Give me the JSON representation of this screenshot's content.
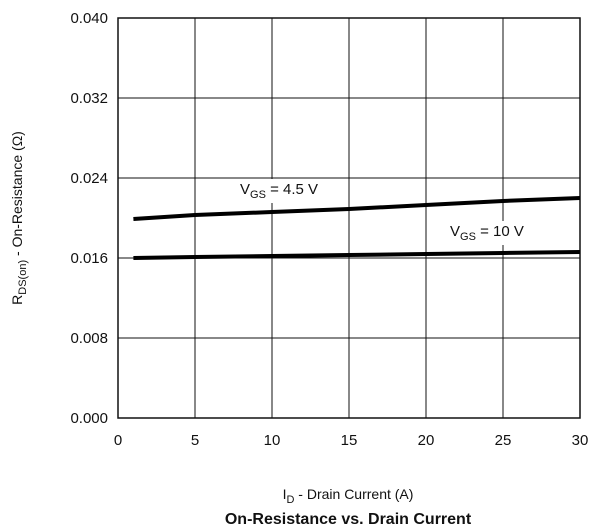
{
  "chart_data": {
    "type": "line",
    "title": "On-Resistance vs. Drain Current",
    "xlabel": {
      "main": "I",
      "sub": "D",
      "rest": " - Drain Current (A)"
    },
    "ylabel": {
      "main": "R",
      "sub": "DS(on)",
      "rest": " - On-Resistance (Ω)"
    },
    "xlim": [
      0,
      30
    ],
    "ylim": [
      0,
      0.04
    ],
    "xticks": [
      "0",
      "5",
      "10",
      "15",
      "20",
      "25",
      "30"
    ],
    "yticks": [
      "0.000",
      "0.008",
      "0.016",
      "0.024",
      "0.032",
      "0.040"
    ],
    "grid": true,
    "series": [
      {
        "name": {
          "main": "V",
          "sub": "GS",
          "rest": " = 4.5 V"
        },
        "x": [
          1,
          5,
          10,
          15,
          20,
          25,
          30
        ],
        "y": [
          0.0199,
          0.0203,
          0.0206,
          0.0209,
          0.0213,
          0.0217,
          0.022
        ]
      },
      {
        "name": {
          "main": "V",
          "sub": "GS",
          "rest": " = 10 V"
        },
        "x": [
          1,
          5,
          10,
          15,
          20,
          25,
          30
        ],
        "y": [
          0.016,
          0.0161,
          0.0162,
          0.0163,
          0.0164,
          0.0165,
          0.0166
        ]
      }
    ]
  }
}
